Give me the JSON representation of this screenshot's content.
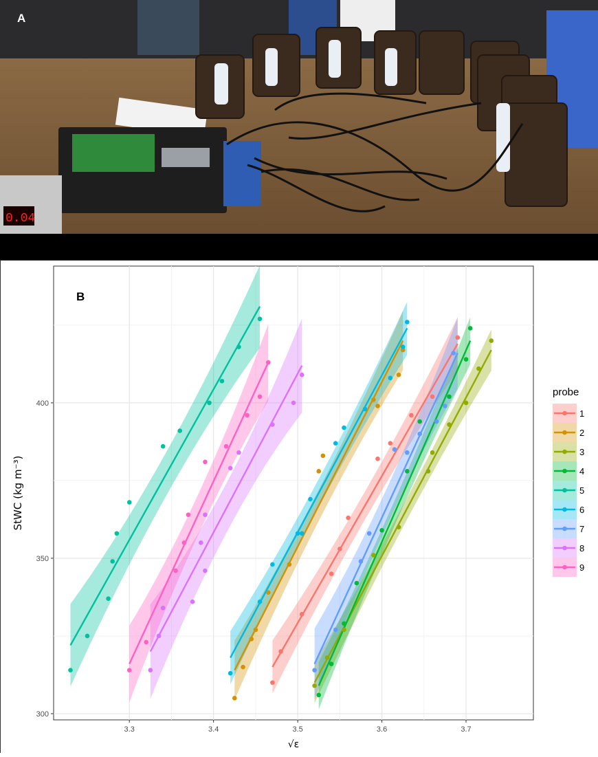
{
  "panels": {
    "photo_label": "A",
    "chart_label": "B"
  },
  "chart_data": {
    "type": "scatter",
    "xlabel": "√ε",
    "ylabel": "StWC (kg m⁻³)",
    "xlim": [
      3.21,
      3.78
    ],
    "ylim": [
      298,
      444
    ],
    "x_ticks": [
      3.3,
      3.4,
      3.5,
      3.6,
      3.7
    ],
    "x_tick_labels": [
      "3.3",
      "3.4",
      "3.5",
      "3.6",
      "3.7"
    ],
    "y_ticks": [
      300,
      350,
      400
    ],
    "y_tick_labels": [
      "300",
      "350",
      "400"
    ],
    "grid": true,
    "legend": {
      "title": "probe",
      "placement": "right"
    },
    "series": [
      {
        "name": "1",
        "color": "#F8766D",
        "x": [
          3.47,
          3.48,
          3.505,
          3.54,
          3.55,
          3.56,
          3.595,
          3.61,
          3.635,
          3.66,
          3.69
        ],
        "y": [
          310,
          320,
          332,
          345,
          353,
          363,
          382,
          387,
          396,
          402,
          421
        ],
        "fit": {
          "x": [
            3.47,
            3.69
          ],
          "y": [
            315,
            419
          ],
          "ci": 4.5
        }
      },
      {
        "name": "2",
        "color": "#D39200",
        "x": [
          3.425,
          3.435,
          3.445,
          3.45,
          3.465,
          3.49,
          3.525,
          3.53,
          3.59,
          3.595,
          3.62,
          3.625
        ],
        "y": [
          305,
          315,
          324,
          327,
          339,
          348,
          378,
          383,
          401,
          399,
          409,
          417
        ],
        "fit": {
          "x": [
            3.425,
            3.625
          ],
          "y": [
            314,
            420
          ],
          "ci": 5
        }
      },
      {
        "name": "3",
        "color": "#93AA00",
        "x": [
          3.52,
          3.535,
          3.555,
          3.59,
          3.62,
          3.655,
          3.66,
          3.68,
          3.7,
          3.715,
          3.73
        ],
        "y": [
          309,
          318,
          327,
          351,
          360,
          378,
          384,
          393,
          400,
          411,
          420
        ],
        "fit": {
          "x": [
            3.52,
            3.73
          ],
          "y": [
            310,
            417
          ],
          "ci": 3.5
        }
      },
      {
        "name": "4",
        "color": "#00BA38",
        "x": [
          3.525,
          3.54,
          3.555,
          3.57,
          3.6,
          3.63,
          3.645,
          3.68,
          3.7,
          3.705
        ],
        "y": [
          306,
          316,
          329,
          342,
          359,
          378,
          394,
          402,
          414,
          424
        ],
        "fit": {
          "x": [
            3.525,
            3.705
          ],
          "y": [
            309,
            420
          ],
          "ci": 4
        }
      },
      {
        "name": "5",
        "color": "#00C19F",
        "x": [
          3.23,
          3.25,
          3.275,
          3.28,
          3.285,
          3.3,
          3.34,
          3.36,
          3.395,
          3.41,
          3.43,
          3.455
        ],
        "y": [
          314,
          325,
          337,
          349,
          358,
          368,
          386,
          391,
          400,
          407,
          418,
          427
        ],
        "fit": {
          "x": [
            3.23,
            3.455
          ],
          "y": [
            322,
            431
          ],
          "ci": 7
        }
      },
      {
        "name": "6",
        "color": "#00B9E3",
        "x": [
          3.42,
          3.455,
          3.47,
          3.5,
          3.505,
          3.515,
          3.545,
          3.555,
          3.58,
          3.61,
          3.625,
          3.63
        ],
        "y": [
          313,
          336,
          348,
          358,
          358,
          369,
          387,
          392,
          398,
          408,
          418,
          426
        ],
        "fit": {
          "x": [
            3.42,
            3.63
          ],
          "y": [
            318,
            424
          ],
          "ci": 4.5
        }
      },
      {
        "name": "7",
        "color": "#619CFF",
        "x": [
          3.52,
          3.545,
          3.575,
          3.585,
          3.615,
          3.63,
          3.645,
          3.665,
          3.675,
          3.685
        ],
        "y": [
          314,
          327,
          349,
          358,
          385,
          384,
          390,
          394,
          399,
          416
        ],
        "fit": {
          "x": [
            3.52,
            3.69
          ],
          "y": [
            316,
            416
          ],
          "ci": 6
        }
      },
      {
        "name": "8",
        "color": "#DB72FB",
        "x": [
          3.325,
          3.335,
          3.34,
          3.375,
          3.385,
          3.39,
          3.39,
          3.42,
          3.43,
          3.47,
          3.495,
          3.505
        ],
        "y": [
          314,
          325,
          334,
          336,
          355,
          346,
          364,
          379,
          384,
          393,
          400,
          409
        ],
        "fit": {
          "x": [
            3.325,
            3.505
          ],
          "y": [
            320,
            412
          ],
          "ci": 8
        }
      },
      {
        "name": "9",
        "color": "#FF61C3",
        "x": [
          3.3,
          3.32,
          3.355,
          3.365,
          3.37,
          3.39,
          3.415,
          3.44,
          3.455,
          3.465
        ],
        "y": [
          314,
          323,
          346,
          355,
          364,
          381,
          386,
          396,
          402,
          413
        ],
        "fit": {
          "x": [
            3.3,
            3.465
          ],
          "y": [
            316,
            413
          ],
          "ci": 6.5
        }
      }
    ]
  }
}
